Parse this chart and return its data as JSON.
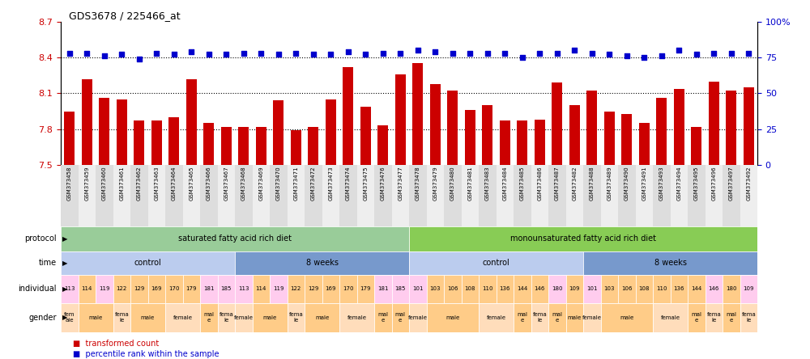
{
  "title": "GDS3678 / 225466_at",
  "samples": [
    "GSM373458",
    "GSM373459",
    "GSM373460",
    "GSM373461",
    "GSM373462",
    "GSM373463",
    "GSM373464",
    "GSM373465",
    "GSM373466",
    "GSM373467",
    "GSM373468",
    "GSM373469",
    "GSM373470",
    "GSM373471",
    "GSM373472",
    "GSM373473",
    "GSM373474",
    "GSM373475",
    "GSM373476",
    "GSM373477",
    "GSM373478",
    "GSM373479",
    "GSM373480",
    "GSM373481",
    "GSM373483",
    "GSM373484",
    "GSM373485",
    "GSM373486",
    "GSM373487",
    "GSM373482",
    "GSM373488",
    "GSM373489",
    "GSM373490",
    "GSM373491",
    "GSM373493",
    "GSM373494",
    "GSM373495",
    "GSM373496",
    "GSM373497",
    "GSM373492"
  ],
  "bar_values": [
    7.95,
    8.22,
    8.06,
    8.05,
    7.87,
    7.87,
    7.9,
    8.22,
    7.85,
    7.82,
    7.82,
    7.82,
    8.04,
    7.79,
    7.82,
    8.05,
    8.32,
    7.99,
    7.83,
    8.26,
    8.35,
    8.18,
    8.12,
    7.96,
    8.0,
    7.87,
    7.87,
    7.88,
    8.19,
    8.0,
    8.12,
    7.95,
    7.93,
    7.85,
    8.06,
    8.14,
    7.82,
    8.2,
    8.12,
    8.15
  ],
  "dot_values": [
    78,
    78,
    76,
    77,
    74,
    78,
    77,
    79,
    77,
    77,
    78,
    78,
    77,
    78,
    77,
    77,
    79,
    77,
    78,
    78,
    80,
    79,
    78,
    78,
    78,
    78,
    75,
    78,
    78,
    80,
    78,
    77,
    76,
    75,
    76,
    80,
    77,
    78,
    78,
    78
  ],
  "ylim_left": [
    7.5,
    8.7
  ],
  "ylim_right": [
    0,
    100
  ],
  "yticks_left": [
    7.5,
    7.8,
    8.1,
    8.4,
    8.7
  ],
  "yticks_right": [
    0,
    25,
    50,
    75,
    100
  ],
  "bar_color": "#cc0000",
  "dot_color": "#0000cc",
  "protocol_groups": [
    {
      "label": "saturated fatty acid rich diet",
      "start": 0,
      "end": 20,
      "color": "#99cc99"
    },
    {
      "label": "monounsaturated fatty acid rich diet",
      "start": 20,
      "end": 40,
      "color": "#88cc55"
    }
  ],
  "time_groups": [
    {
      "label": "control",
      "start": 0,
      "end": 10,
      "color": "#bbccee"
    },
    {
      "label": "8 weeks",
      "start": 10,
      "end": 20,
      "color": "#7799cc"
    },
    {
      "label": "control",
      "start": 20,
      "end": 30,
      "color": "#bbccee"
    },
    {
      "label": "8 weeks",
      "start": 30,
      "end": 40,
      "color": "#7799cc"
    }
  ],
  "individual_values": [
    "113",
    "114",
    "119",
    "122",
    "129",
    "169",
    "170",
    "179",
    "181",
    "185",
    "113",
    "114",
    "119",
    "122",
    "129",
    "169",
    "170",
    "179",
    "181",
    "185",
    "101",
    "103",
    "106",
    "108",
    "110",
    "136",
    "144",
    "146",
    "180",
    "109",
    "101",
    "103",
    "106",
    "108",
    "110",
    "136",
    "144",
    "146",
    "180",
    "109"
  ],
  "gender_by_idx": [
    "female",
    "male",
    "female",
    "male",
    "male",
    "male",
    "male",
    "male",
    "female",
    "female",
    "female",
    "male",
    "female",
    "male",
    "male",
    "male",
    "male",
    "male",
    "female",
    "female",
    "female",
    "male",
    "male",
    "male",
    "male",
    "male",
    "male",
    "male",
    "female",
    "male",
    "female",
    "male",
    "male",
    "male",
    "male",
    "male",
    "male",
    "female",
    "male",
    "female"
  ],
  "gender_groups": [
    {
      "label": "fem\nale",
      "start": 0,
      "end": 1,
      "color": "#ffddbb"
    },
    {
      "label": "male",
      "start": 1,
      "end": 3,
      "color": "#ffcc88"
    },
    {
      "label": "fema\nle",
      "start": 3,
      "end": 4,
      "color": "#ffddbb"
    },
    {
      "label": "male",
      "start": 4,
      "end": 6,
      "color": "#ffcc88"
    },
    {
      "label": "female",
      "start": 6,
      "end": 8,
      "color": "#ffddbb"
    },
    {
      "label": "mal\ne",
      "start": 8,
      "end": 9,
      "color": "#ffcc88"
    },
    {
      "label": "fema\nle",
      "start": 9,
      "end": 10,
      "color": "#ffddbb"
    },
    {
      "label": "female",
      "start": 10,
      "end": 11,
      "color": "#ffddbb"
    },
    {
      "label": "male",
      "start": 11,
      "end": 13,
      "color": "#ffcc88"
    },
    {
      "label": "fema\nle",
      "start": 13,
      "end": 14,
      "color": "#ffddbb"
    },
    {
      "label": "male",
      "start": 14,
      "end": 16,
      "color": "#ffcc88"
    },
    {
      "label": "female",
      "start": 16,
      "end": 18,
      "color": "#ffddbb"
    },
    {
      "label": "mal\ne",
      "start": 18,
      "end": 19,
      "color": "#ffcc88"
    },
    {
      "label": "mal\ne",
      "start": 19,
      "end": 20,
      "color": "#ffcc88"
    },
    {
      "label": "female",
      "start": 20,
      "end": 21,
      "color": "#ffddbb"
    },
    {
      "label": "male",
      "start": 21,
      "end": 24,
      "color": "#ffcc88"
    },
    {
      "label": "female",
      "start": 24,
      "end": 26,
      "color": "#ffddbb"
    },
    {
      "label": "mal\ne",
      "start": 26,
      "end": 27,
      "color": "#ffcc88"
    },
    {
      "label": "fema\nle",
      "start": 27,
      "end": 28,
      "color": "#ffddbb"
    },
    {
      "label": "mal\ne",
      "start": 28,
      "end": 29,
      "color": "#ffcc88"
    },
    {
      "label": "male",
      "start": 29,
      "end": 30,
      "color": "#ffcc88"
    },
    {
      "label": "female",
      "start": 30,
      "end": 31,
      "color": "#ffddbb"
    },
    {
      "label": "male",
      "start": 31,
      "end": 34,
      "color": "#ffcc88"
    },
    {
      "label": "female",
      "start": 34,
      "end": 36,
      "color": "#ffddbb"
    },
    {
      "label": "mal\ne",
      "start": 36,
      "end": 37,
      "color": "#ffcc88"
    },
    {
      "label": "fema\nle",
      "start": 37,
      "end": 38,
      "color": "#ffddbb"
    },
    {
      "label": "mal\ne",
      "start": 38,
      "end": 39,
      "color": "#ffcc88"
    },
    {
      "label": "fema\nle",
      "start": 39,
      "end": 40,
      "color": "#ffddbb"
    }
  ],
  "legend_items": [
    {
      "color": "#cc0000",
      "label": "transformed count"
    },
    {
      "color": "#0000cc",
      "label": "percentile rank within the sample"
    }
  ]
}
